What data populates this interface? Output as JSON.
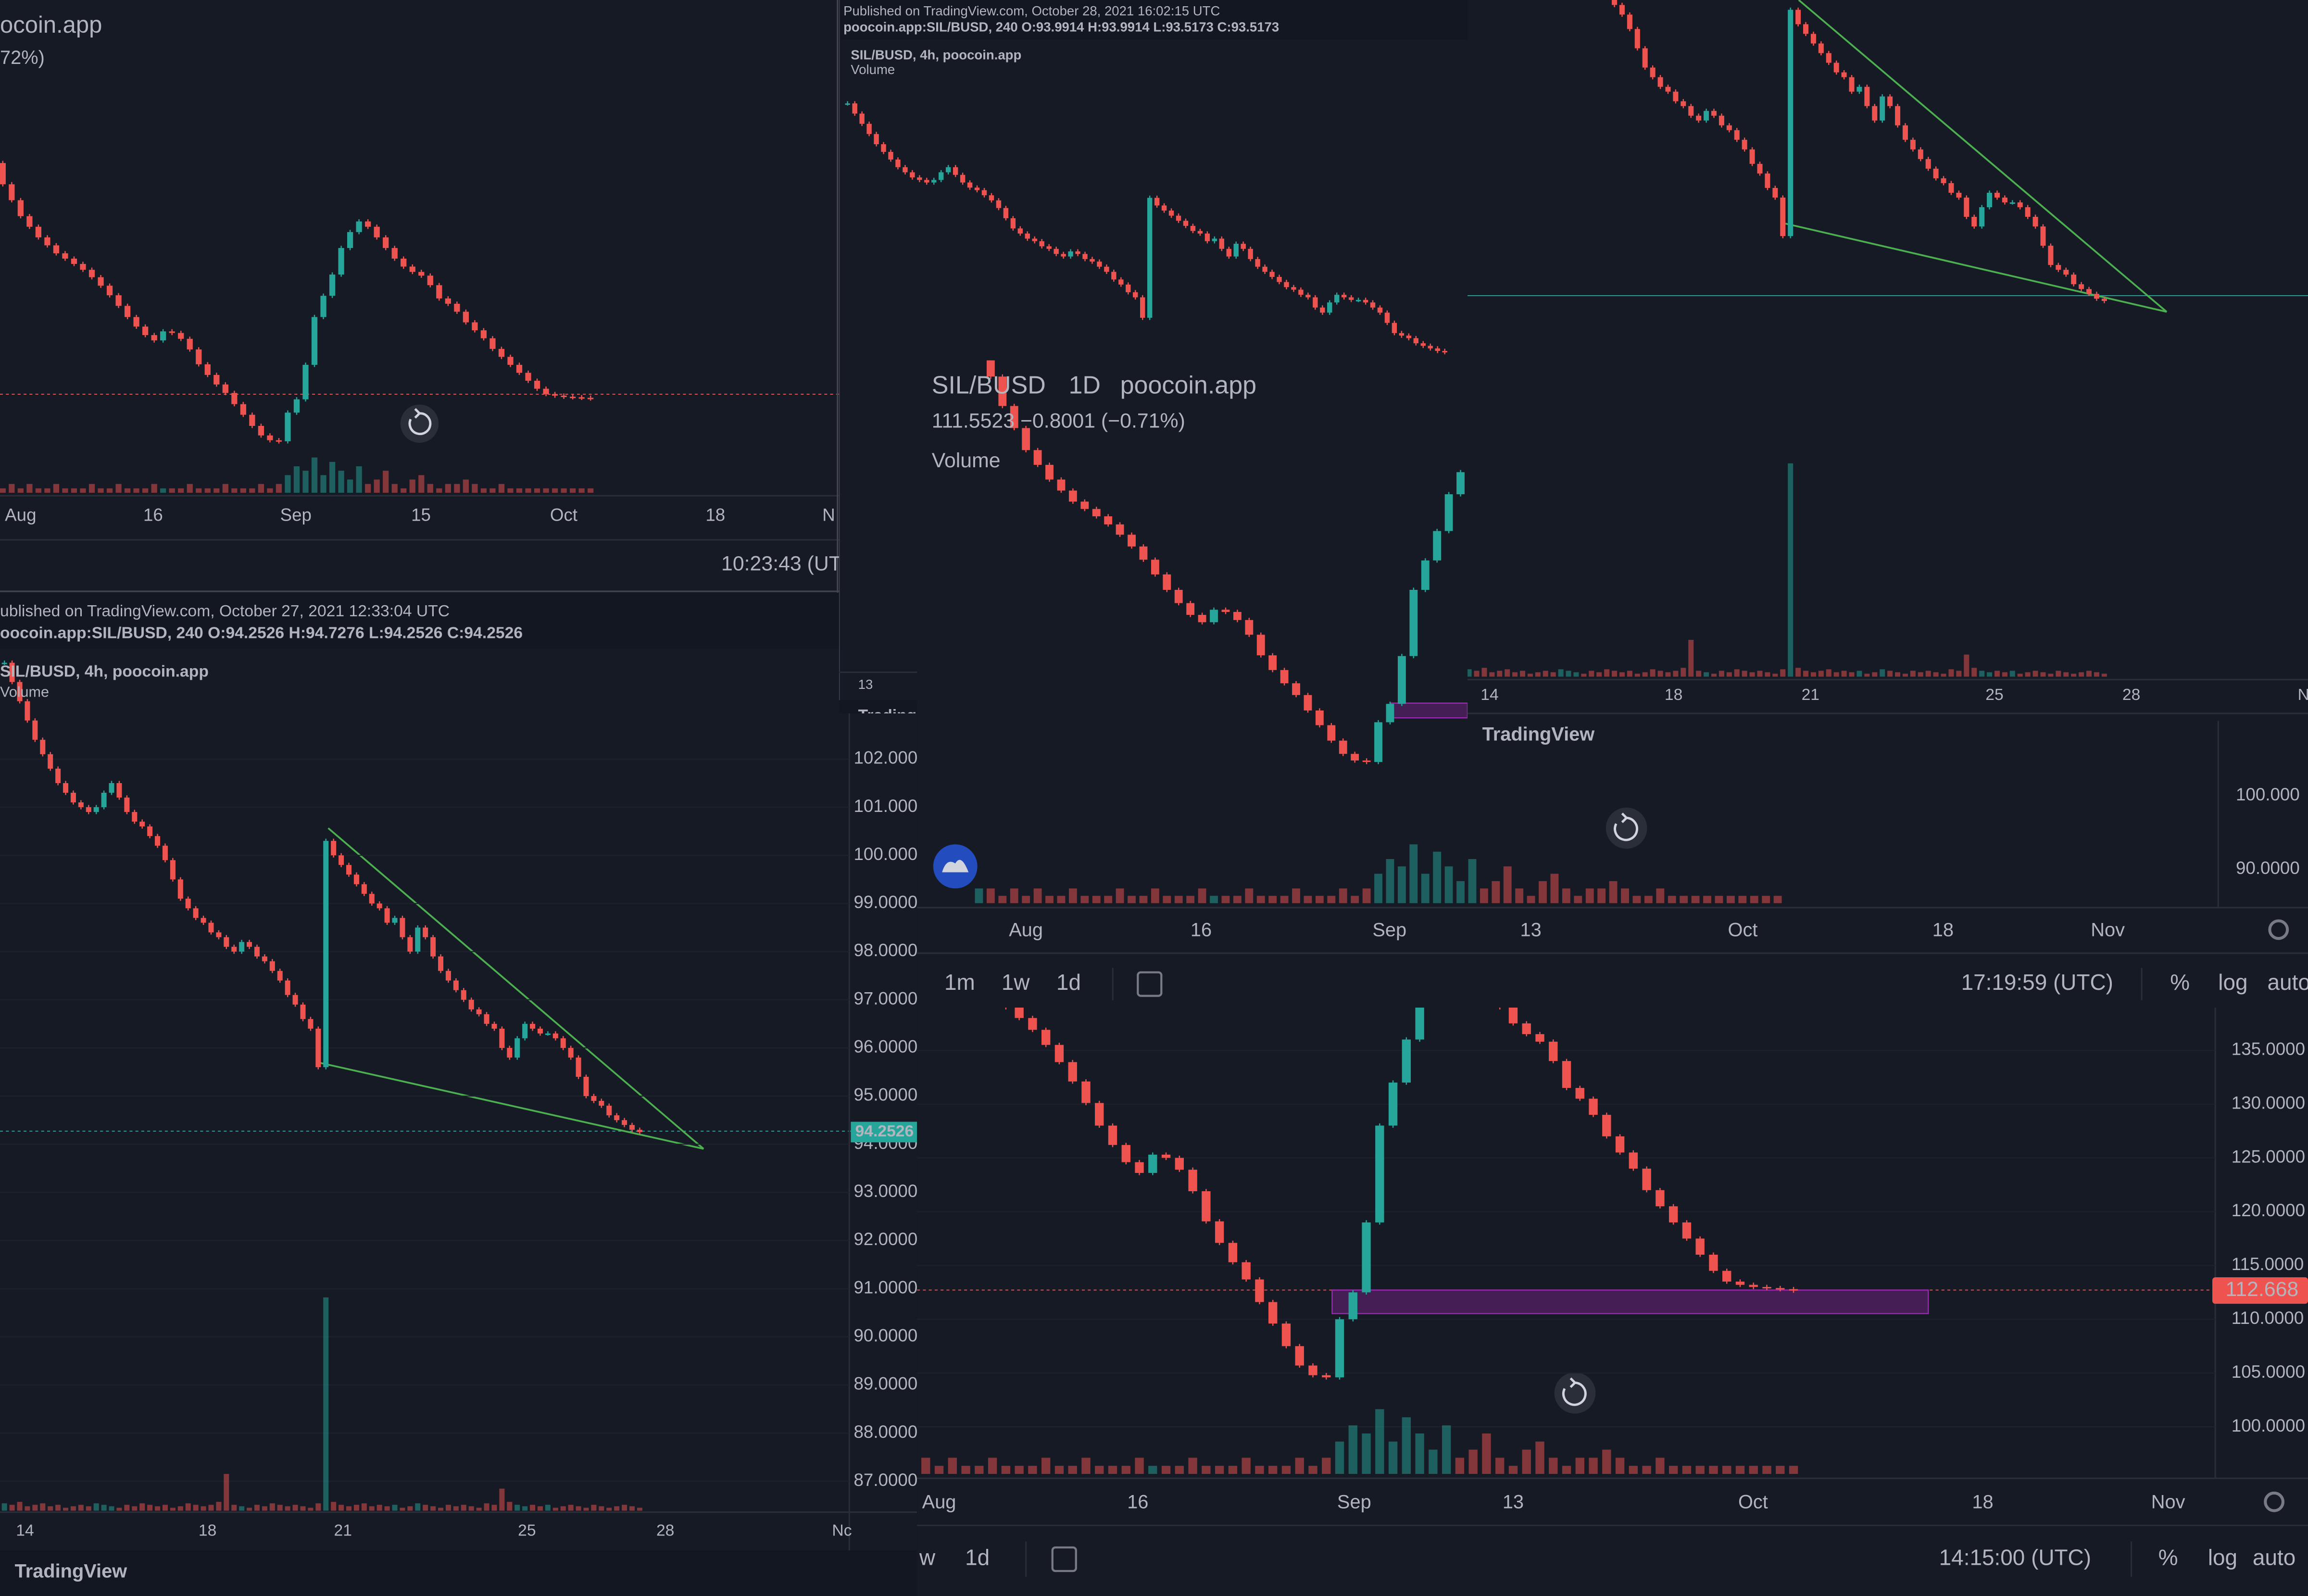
{
  "panel_a": {
    "title": "ocoin.app",
    "change": "72%)",
    "time_labels": [
      "Aug",
      "16",
      "Sep",
      "15",
      "Oct",
      "18",
      "N"
    ],
    "clock": "10:23:43 (UT"
  },
  "panel_b": {
    "published": "ublished on TradingView.com, October 27, 2021 12:33:04 UTC",
    "ohlc": "oocoin.app:SIL/BUSD, 240 O:94.2526 H:94.7276 L:94.2526 C:94.2526",
    "legend": "SIL/BUSD, 4h, poocoin.app",
    "volume_label": "Volume",
    "price_ticks": [
      {
        "value": 102,
        "label": "102.0000"
      },
      {
        "value": 101,
        "label": "101.0000"
      },
      {
        "value": 100,
        "label": "100.0000"
      },
      {
        "value": 99,
        "label": "99.0000"
      },
      {
        "value": 98,
        "label": "98.0000"
      },
      {
        "value": 97,
        "label": "97.0000"
      },
      {
        "value": 96,
        "label": "96.0000"
      },
      {
        "value": 95,
        "label": "95.0000"
      },
      {
        "value": 94,
        "label": "94.0000"
      },
      {
        "value": 93,
        "label": "93.0000"
      },
      {
        "value": 92,
        "label": "92.0000"
      },
      {
        "value": 91,
        "label": "91.0000"
      },
      {
        "value": 90,
        "label": "90.0000"
      },
      {
        "value": 89,
        "label": "89.0000"
      },
      {
        "value": 88,
        "label": "88.0000"
      },
      {
        "value": 87,
        "label": "87.0000"
      }
    ],
    "price_tag": "94.2526",
    "time_labels": [
      "14",
      "18",
      "21",
      "25",
      "28",
      "Nc"
    ],
    "logo": "TradingView"
  },
  "panel_c": {
    "published": "Published on TradingView.com, October 28, 2021 16:02:15 UTC",
    "ohlc": "poocoin.app:SIL/BUSD, 240 O:93.9914 H:93.9914 L:93.5173 C:93.5173",
    "legend": "SIL/BUSD, 4h, poocoin.app",
    "volume_label": "Volume",
    "time_label": "13",
    "logo": "Trading"
  },
  "panel_d": {
    "symbol": "SIL/BUSD",
    "interval": "1D",
    "source": "poocoin.app",
    "quote": "111.5523  −0.8001 (−0.71%)",
    "volume_label": "Volume",
    "price_ticks": [
      {
        "value": 100,
        "label": "100.000"
      },
      {
        "value": 90,
        "label": "90.0000"
      }
    ],
    "time_labels": [
      "Aug",
      "16",
      "Sep",
      "13",
      "Oct",
      "18",
      "Nov"
    ],
    "toolbar": [
      "1m",
      "1w",
      "1d"
    ],
    "clock": "17:19:59 (UTC)",
    "scale_options": [
      "%",
      "log",
      "auto"
    ]
  },
  "panel_e": {
    "time_labels": [
      "14",
      "18",
      "21",
      "25",
      "28",
      "N"
    ],
    "logo": "TradingView"
  },
  "panel_f": {
    "price_ticks": [
      {
        "value": 135,
        "label": "135.0000"
      },
      {
        "value": 130,
        "label": "130.0000"
      },
      {
        "value": 125,
        "label": "125.0000"
      },
      {
        "value": 120,
        "label": "120.0000"
      },
      {
        "value": 115,
        "label": "115.0000"
      },
      {
        "value": 110,
        "label": "110.0000"
      },
      {
        "value": 105,
        "label": "105.0000"
      },
      {
        "value": 100,
        "label": "100.0000"
      }
    ],
    "price_tag": "112.668",
    "time_labels": [
      "Aug",
      "16",
      "Sep",
      "13",
      "Oct",
      "18",
      "Nov"
    ],
    "toolbar": [
      "w",
      "1d"
    ],
    "clock": "14:15:00 (UTC)",
    "scale_options": [
      "%",
      "log",
      "auto"
    ]
  },
  "daily": {
    "closes": [
      160,
      157,
      153,
      150,
      147,
      145,
      143,
      141.5,
      140,
      139,
      138,
      136.9,
      135.5,
      133.9,
      132.1,
      130.1,
      128,
      126.2,
      124.6,
      123.6,
      125.3,
      125,
      123.9,
      121.9,
      119.1,
      117.1,
      115.3,
      113.7,
      111.6,
      109.6,
      107.5,
      105.7,
      104.8,
      104.6,
      110,
      112.5,
      119,
      128,
      132,
      136,
      141,
      144,
      146,
      145,
      143,
      141,
      139,
      137.5,
      136.5,
      135.8,
      134,
      131.5,
      130.5,
      129,
      127,
      125.5,
      124,
      122,
      120.5,
      119,
      117.5,
      116,
      114.5,
      113.5,
      113.2,
      113,
      112.9,
      112.8,
      112.668
    ],
    "volumes": [
      2,
      2,
      1,
      2,
      1,
      2,
      1,
      1,
      2,
      1,
      1,
      1,
      2,
      1,
      1,
      2,
      1,
      1,
      1,
      2,
      1,
      1,
      1,
      2,
      1,
      1,
      1,
      2,
      1,
      1,
      1,
      2,
      1,
      2,
      4,
      6,
      5,
      8,
      4,
      7,
      5,
      3,
      6,
      2,
      3,
      5,
      2,
      1,
      3,
      4,
      2,
      1,
      2,
      2,
      3,
      2,
      1,
      1,
      2,
      1,
      1,
      1,
      1,
      1,
      1,
      1,
      1,
      1,
      1
    ]
  },
  "h4": {
    "closes": [
      104.0,
      103.6,
      103.2,
      102.8,
      102.4,
      102.1,
      101.8,
      101.5,
      101.3,
      101.1,
      101.0,
      100.9,
      101.0,
      101.3,
      101.5,
      101.2,
      100.9,
      100.7,
      100.6,
      100.4,
      100.2,
      99.9,
      99.5,
      99.1,
      98.9,
      98.7,
      98.6,
      98.4,
      98.3,
      98.1,
      98.0,
      98.2,
      98.1,
      97.9,
      97.8,
      97.6,
      97.4,
      97.1,
      96.9,
      96.6,
      96.4,
      95.6,
      100.3,
      100.0,
      99.8,
      99.6,
      99.4,
      99.2,
      99.0,
      98.9,
      98.6,
      98.7,
      98.3,
      98.0,
      98.5,
      98.3,
      97.9,
      97.6,
      97.4,
      97.2,
      97.0,
      96.8,
      96.7,
      96.5,
      96.4,
      96.0,
      95.8,
      96.2,
      96.5,
      96.4,
      96.3,
      96.3,
      96.2,
      96.0,
      95.8,
      95.4,
      95.0,
      94.9,
      94.8,
      94.6,
      94.5,
      94.4,
      94.3,
      94.2526
    ],
    "volumes": [
      5,
      4,
      6,
      3,
      4,
      5,
      3,
      4,
      2,
      3,
      4,
      3,
      5,
      4,
      3,
      2,
      4,
      3,
      5,
      4,
      3,
      4,
      2,
      3,
      5,
      4,
      3,
      4,
      6,
      25,
      4,
      3,
      2,
      4,
      3,
      5,
      4,
      3,
      4,
      3,
      2,
      5,
      145,
      6,
      4,
      3,
      4,
      5,
      3,
      4,
      3,
      4,
      2,
      3,
      5,
      4,
      3,
      2,
      4,
      3,
      4,
      3,
      2,
      5,
      4,
      15,
      6,
      4,
      3,
      4,
      3,
      4,
      2,
      3,
      4,
      3,
      2,
      4,
      3,
      2,
      3,
      4,
      3,
      2
    ]
  }
}
